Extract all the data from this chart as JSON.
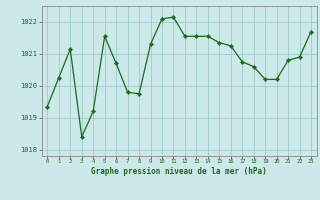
{
  "x": [
    0,
    1,
    2,
    3,
    4,
    5,
    6,
    7,
    8,
    9,
    10,
    11,
    12,
    13,
    14,
    15,
    16,
    17,
    18,
    19,
    20,
    21,
    22,
    23
  ],
  "y": [
    1019.35,
    1020.25,
    1021.15,
    1018.4,
    1019.2,
    1021.55,
    1020.7,
    1019.8,
    1019.75,
    1021.3,
    1022.1,
    1022.15,
    1021.55,
    1021.55,
    1021.55,
    1021.35,
    1021.25,
    1020.75,
    1020.6,
    1020.2,
    1020.2,
    1020.8,
    1020.9,
    1021.7
  ],
  "line_color": "#1a6b1a",
  "marker_color": "#1a6b1a",
  "bg_color": "#cce8e8",
  "grid_color": "#99cccc",
  "title": "Graphe pression niveau de la mer (hPa)",
  "title_color": "#1a6b1a",
  "ylim": [
    1017.8,
    1022.5
  ],
  "yticks": [
    1018,
    1019,
    1020,
    1021,
    1022
  ],
  "xticks": [
    0,
    1,
    2,
    3,
    4,
    5,
    6,
    7,
    8,
    9,
    10,
    11,
    12,
    13,
    14,
    15,
    16,
    17,
    18,
    19,
    20,
    21,
    22,
    23
  ],
  "tick_color": "#1a6b1a",
  "spine_color": "#888888",
  "xlim": [
    -0.5,
    23.5
  ]
}
